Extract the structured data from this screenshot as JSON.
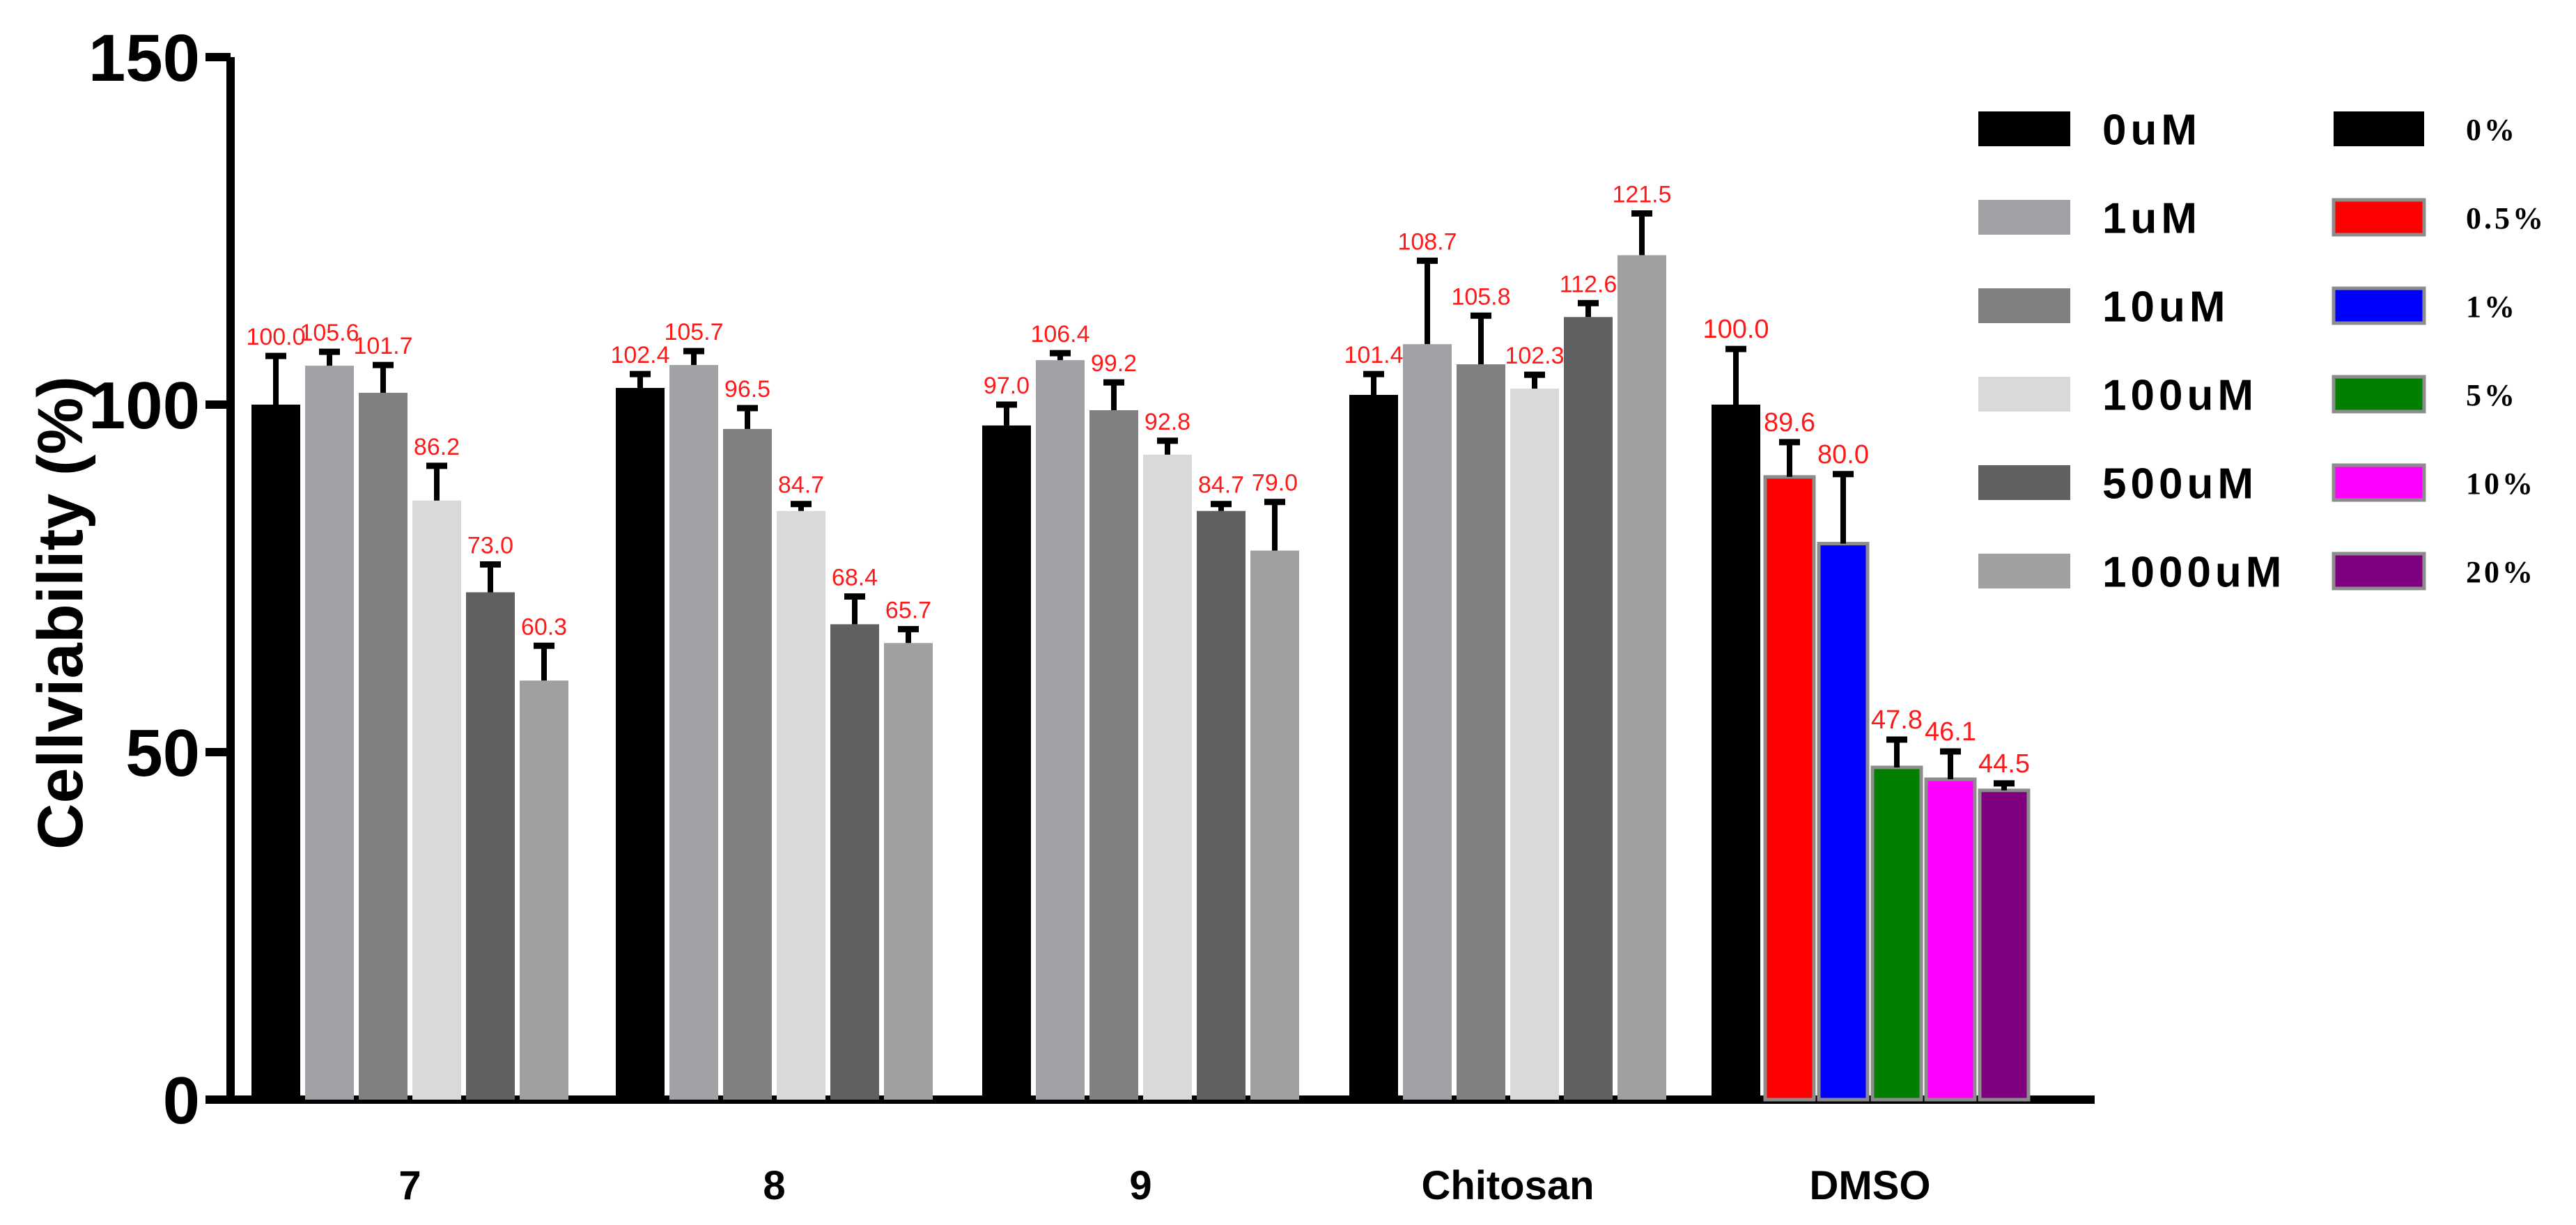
{
  "chart_data": {
    "type": "bar",
    "ylabel": "Cellviability (%)",
    "xlabel": "",
    "ylim": [
      0,
      150
    ],
    "yticks": [
      0,
      50,
      100,
      150
    ],
    "categories": [
      "7",
      "8",
      "9",
      "Chitosan",
      "DMSO"
    ],
    "legend_concentration": {
      "placement": "right",
      "entries": [
        {
          "label": "0uM",
          "color": "#000000"
        },
        {
          "label": "1uM",
          "color": "#a2a2a6"
        },
        {
          "label": "10uM",
          "color": "#808080"
        },
        {
          "label": "100uM",
          "color": "#d9d9d9"
        },
        {
          "label": "500uM",
          "color": "#606060"
        },
        {
          "label": "1000uM",
          "color": "#a0a0a0"
        }
      ]
    },
    "legend_dmso": {
      "placement": "right",
      "entries": [
        {
          "label": "0%",
          "color": "#000000"
        },
        {
          "label": "0.5%",
          "color": "#ff0000"
        },
        {
          "label": "1%",
          "color": "#0000ff"
        },
        {
          "label": "5%",
          "color": "#007f00"
        },
        {
          "label": "10%",
          "color": "#ff00ff"
        },
        {
          "label": "20%",
          "color": "#7f007f"
        }
      ]
    },
    "groups": [
      {
        "category": "7",
        "values": [
          100.0,
          105.6,
          101.7,
          86.2,
          73.0,
          60.3
        ],
        "errors": [
          7,
          2,
          4,
          5,
          4,
          5
        ],
        "labels": [
          "100.0",
          "105.6",
          "101.7",
          "86.2",
          "73.0",
          "60.3"
        ],
        "palette": "concentration"
      },
      {
        "category": "8",
        "values": [
          102.4,
          105.7,
          96.5,
          84.7,
          68.4,
          65.7
        ],
        "errors": [
          2,
          2,
          3,
          1,
          4,
          2
        ],
        "labels": [
          "102.4",
          "105.7",
          "96.5",
          "84.7",
          "68.4",
          "65.7"
        ],
        "palette": "concentration"
      },
      {
        "category": "9",
        "values": [
          97.0,
          106.4,
          99.2,
          92.8,
          84.7,
          79.0
        ],
        "errors": [
          3,
          1,
          4,
          2,
          1,
          7
        ],
        "labels": [
          "97.0",
          "106.4",
          "99.2",
          "92.8",
          "84.7",
          "79.0"
        ],
        "palette": "concentration"
      },
      {
        "category": "Chitosan",
        "values": [
          101.4,
          108.7,
          105.8,
          102.3,
          112.6,
          121.5
        ],
        "errors": [
          3,
          12,
          7,
          2,
          2,
          6
        ],
        "labels": [
          "101.4",
          "108.7",
          "105.8",
          "102.3",
          "112.6",
          "121.5"
        ],
        "palette": "concentration"
      },
      {
        "category": "DMSO",
        "values": [
          100.0,
          89.6,
          80.0,
          47.8,
          46.1,
          44.5
        ],
        "errors": [
          8,
          5,
          10,
          4,
          4,
          1
        ],
        "labels": [
          "100.0",
          "89.6",
          "80.0",
          "47.8",
          "46.1",
          "44.5"
        ],
        "palette": "dmso"
      }
    ]
  }
}
